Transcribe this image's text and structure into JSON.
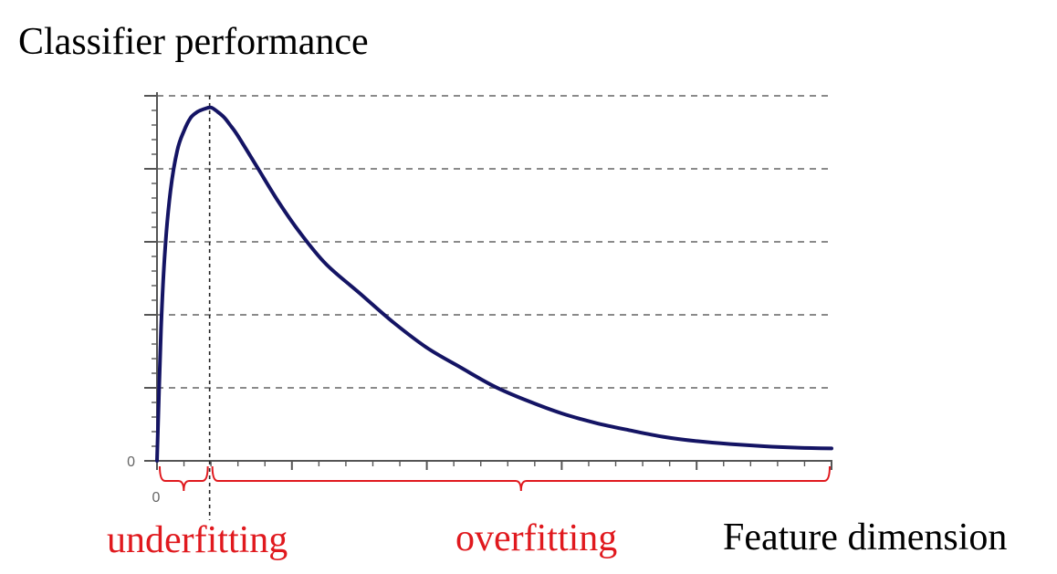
{
  "chart_data": {
    "type": "line",
    "title": "Classifier performance",
    "xlabel": "Feature dimension",
    "ylabel": "",
    "x_tick_label": "0",
    "y_tick_label": "0",
    "xlim": [
      0,
      100
    ],
    "ylim": [
      0,
      5
    ],
    "grid": true,
    "grid_y_values": [
      1,
      2,
      3,
      4,
      5
    ],
    "x_minor_ticks": 25,
    "y_minor_ticks": 25,
    "optimum_x": 7.8,
    "series": [
      {
        "name": "performance",
        "color": "#141464",
        "points": [
          [
            0,
            0.0
          ],
          [
            0.6,
            1.8
          ],
          [
            1.2,
            2.9
          ],
          [
            2,
            3.7
          ],
          [
            3,
            4.25
          ],
          [
            4,
            4.52
          ],
          [
            5,
            4.7
          ],
          [
            6,
            4.78
          ],
          [
            7,
            4.82
          ],
          [
            8,
            4.84
          ],
          [
            9,
            4.78
          ],
          [
            10,
            4.7
          ],
          [
            11,
            4.58
          ],
          [
            12,
            4.45
          ],
          [
            15,
            4.0
          ],
          [
            18,
            3.55
          ],
          [
            21,
            3.15
          ],
          [
            25,
            2.7
          ],
          [
            30,
            2.3
          ],
          [
            35,
            1.9
          ],
          [
            40,
            1.55
          ],
          [
            45,
            1.28
          ],
          [
            50,
            1.02
          ],
          [
            55,
            0.82
          ],
          [
            60,
            0.65
          ],
          [
            65,
            0.52
          ],
          [
            70,
            0.42
          ],
          [
            75,
            0.33
          ],
          [
            80,
            0.27
          ],
          [
            85,
            0.23
          ],
          [
            90,
            0.2
          ],
          [
            95,
            0.18
          ],
          [
            100,
            0.17
          ]
        ]
      }
    ],
    "regions": [
      {
        "label": "underfitting",
        "from": 0,
        "to": 7.8,
        "color": "#e0191e"
      },
      {
        "label": "overfitting",
        "from": 7.8,
        "to": 100,
        "color": "#e0191e"
      }
    ]
  }
}
